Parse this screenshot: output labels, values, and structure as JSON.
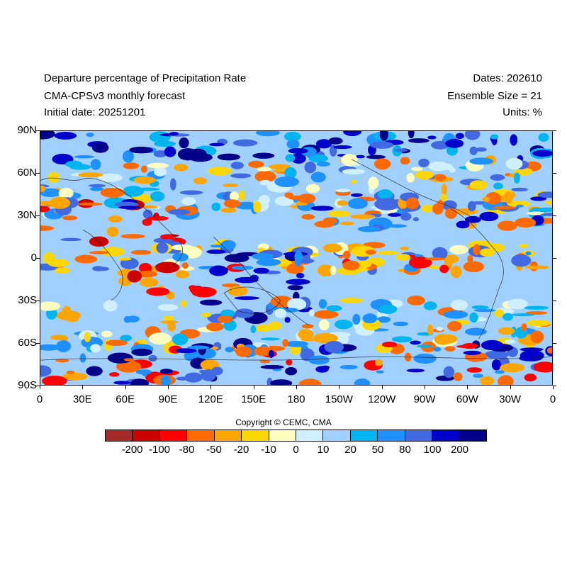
{
  "header": {
    "title": "Departure percentage of Precipitation Rate",
    "subtitle": "CMA-CPSv3 monthly forecast",
    "initial_date": "Initial date: 20251201",
    "dates": "Dates: 202610",
    "ensemble": "Ensemble Size = 21",
    "units": "Units: %"
  },
  "map": {
    "lat_labels": [
      "90N",
      "60N",
      "30N",
      "0",
      "30S",
      "60S",
      "90S"
    ],
    "lon_labels": [
      "0",
      "30E",
      "60E",
      "90E",
      "120E",
      "150E",
      "180",
      "150W",
      "120W",
      "90W",
      "60W",
      "30W",
      "0"
    ]
  },
  "copyright": "Copyright © CEMC, CMA",
  "colorbar": {
    "colors": [
      "#a52a2a",
      "#cd0000",
      "#ff0000",
      "#ff6a00",
      "#ffa500",
      "#ffd700",
      "#ffffc0",
      "#d0f0ff",
      "#a0d0ff",
      "#00b4f0",
      "#1e90ff",
      "#4169e1",
      "#0000cd",
      "#00008b"
    ],
    "labels": [
      "-200",
      "-100",
      "-80",
      "-50",
      "-20",
      "-10",
      "0",
      "10",
      "20",
      "50",
      "80",
      "100",
      "200"
    ]
  }
}
